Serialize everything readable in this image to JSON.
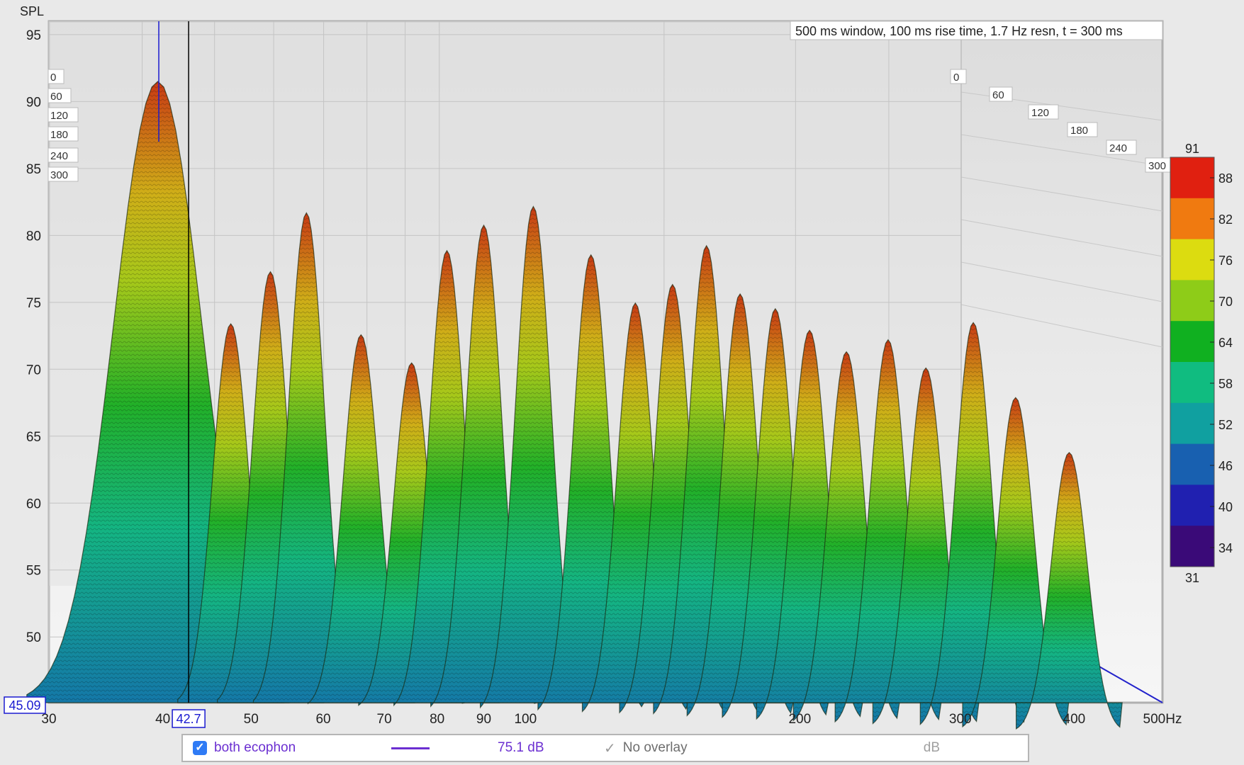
{
  "chart_data": {
    "type": "waterfall",
    "title": "500 ms window, 100 ms rise time,  1.7 Hz resn, t = 300 ms",
    "ylabel": "SPL",
    "xunit": "Hz",
    "xscale": "log",
    "xlim": [
      30,
      500
    ],
    "ylim": [
      45.09,
      96
    ],
    "y_ticks": [
      50,
      55,
      60,
      65,
      70,
      75,
      80,
      85,
      90,
      95
    ],
    "x_ticks": [
      {
        "value": 30,
        "label": "30"
      },
      {
        "value": 40,
        "label": "40"
      },
      {
        "value": 50,
        "label": "50"
      },
      {
        "value": 60,
        "label": "60"
      },
      {
        "value": 70,
        "label": "70"
      },
      {
        "value": 80,
        "label": "80"
      },
      {
        "value": 90,
        "label": "90"
      },
      {
        "value": 100,
        "label": "100"
      },
      {
        "value": 200,
        "label": "200"
      },
      {
        "value": 300,
        "label": "300"
      },
      {
        "value": 400,
        "label": "400"
      },
      {
        "value": 500,
        "label": "500Hz"
      }
    ],
    "time_slices_ms": [
      "0",
      "60",
      "120",
      "180",
      "240",
      "300"
    ],
    "cursor": {
      "x_label": "42.7",
      "y_label": "45.09"
    },
    "colorbar": {
      "min": "31",
      "max": "91",
      "ticks": [
        "88",
        "82",
        "76",
        "70",
        "64",
        "58",
        "52",
        "46",
        "40",
        "34"
      ],
      "colors": [
        "#e02010",
        "#f07a10",
        "#dcdc10",
        "#8ecc18",
        "#10b020",
        "#10bc80",
        "#10a0a0",
        "#1860b0",
        "#2020b0",
        "#3a0a78"
      ]
    },
    "grid": true,
    "peaks": [
      {
        "freq": 39.5,
        "spl": 91.5
      },
      {
        "freq": 47.5,
        "spl": 73.5
      },
      {
        "freq": 52.5,
        "spl": 77.5
      },
      {
        "freq": 57.5,
        "spl": 82
      },
      {
        "freq": 66,
        "spl": 73
      },
      {
        "freq": 75,
        "spl": 71
      },
      {
        "freq": 82,
        "spl": 79.5
      },
      {
        "freq": 90,
        "spl": 81.5
      },
      {
        "freq": 102,
        "spl": 83
      },
      {
        "freq": 118,
        "spl": 79.5
      },
      {
        "freq": 132,
        "spl": 76
      },
      {
        "freq": 145,
        "spl": 77.5
      },
      {
        "freq": 158,
        "spl": 80.5
      },
      {
        "freq": 172,
        "spl": 77
      },
      {
        "freq": 188,
        "spl": 76
      },
      {
        "freq": 205,
        "spl": 74.5
      },
      {
        "freq": 225,
        "spl": 73
      },
      {
        "freq": 250,
        "spl": 74
      },
      {
        "freq": 275,
        "spl": 72
      },
      {
        "freq": 310,
        "spl": 75.5
      },
      {
        "freq": 345,
        "spl": 70
      },
      {
        "freq": 395,
        "spl": 66
      }
    ]
  },
  "legend": {
    "series_name": "both ecophon",
    "series_value": "75.1 dB",
    "overlay_label": "No overlay",
    "unit_label": "dB",
    "series_color": "#6b2fd1"
  }
}
